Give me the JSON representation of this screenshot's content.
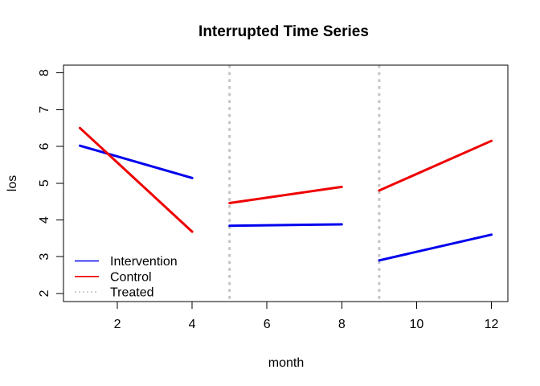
{
  "chart_data": {
    "type": "line",
    "title": "Interrupted Time Series",
    "xlabel": "month",
    "ylabel": "los",
    "xlim": [
      0.56,
      12.44
    ],
    "ylim": [
      1.78,
      8.21
    ],
    "x_ticks": [
      2,
      4,
      6,
      8,
      10,
      12
    ],
    "y_ticks": [
      2,
      3,
      4,
      5,
      6,
      7,
      8
    ],
    "grid": false,
    "background_color": "#ffffff",
    "box_color": "#000000",
    "series": [
      {
        "name": "Intervention",
        "color": "#0000EE",
        "line_width": 3,
        "style": "solid",
        "segments": [
          {
            "x": [
              1,
              4
            ],
            "y": [
              6.02,
              5.14
            ]
          },
          {
            "x": [
              5,
              8
            ],
            "y": [
              3.84,
              3.88
            ]
          },
          {
            "x": [
              9,
              12
            ],
            "y": [
              2.9,
              3.6
            ]
          }
        ]
      },
      {
        "name": "Control",
        "color": "#EE0000",
        "line_width": 3,
        "style": "solid",
        "segments": [
          {
            "x": [
              1,
              4
            ],
            "y": [
              6.5,
              3.68
            ]
          },
          {
            "x": [
              5,
              8
            ],
            "y": [
              4.46,
              4.9
            ]
          },
          {
            "x": [
              9,
              12
            ],
            "y": [
              4.8,
              6.15
            ]
          }
        ]
      }
    ],
    "treatment_lines": {
      "name": "Treated",
      "x": [
        5,
        9
      ],
      "color": "#C4C4C4",
      "style": "dotted",
      "line_width": 3
    },
    "legend": {
      "position": "bottomleft",
      "entries": [
        {
          "label": "Intervention",
          "color": "#0000EE",
          "style": "solid"
        },
        {
          "label": "Control",
          "color": "#EE0000",
          "style": "solid"
        },
        {
          "label": "Treated",
          "color": "#C4C4C4",
          "style": "dotted"
        }
      ]
    }
  }
}
